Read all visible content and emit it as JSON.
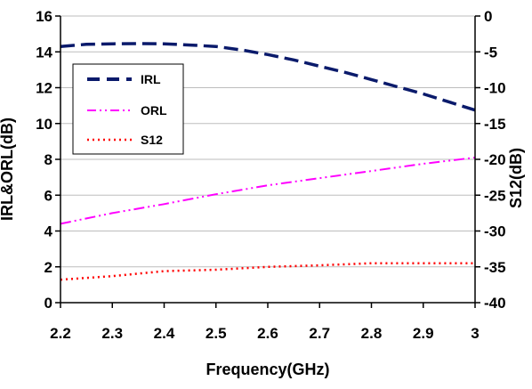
{
  "chart_data": {
    "type": "line",
    "xlabel": "Frequency(GHz)",
    "ylabel_left": "IRL&ORL(dB)",
    "ylabel_right": "S12(dB)",
    "x_ticks": [
      "2.2",
      "2.3",
      "2.4",
      "2.5",
      "2.6",
      "2.7",
      "2.8",
      "2.9",
      "3"
    ],
    "y_left_ticks": [
      "0",
      "2",
      "4",
      "6",
      "8",
      "10",
      "12",
      "14",
      "16"
    ],
    "y_right_ticks": [
      "0",
      "-5",
      "-10",
      "-15",
      "-20",
      "-25",
      "-30",
      "-35",
      "-40"
    ],
    "xlim": [
      2.2,
      3.0
    ],
    "ylim_left": [
      0,
      16
    ],
    "ylim_right": [
      -40,
      0
    ],
    "grid": "horizontal",
    "legend_position": "top-left",
    "series": [
      {
        "name": "IRL",
        "axis": "left",
        "style": "dashed",
        "color": "#0a1a6b",
        "x": [
          2.2,
          2.25,
          2.3,
          2.35,
          2.4,
          2.45,
          2.5,
          2.55,
          2.6,
          2.65,
          2.7,
          2.75,
          2.8,
          2.85,
          2.9,
          2.95,
          3.0
        ],
        "y": [
          14.3,
          14.42,
          14.45,
          14.46,
          14.45,
          14.38,
          14.3,
          14.1,
          13.85,
          13.55,
          13.2,
          12.85,
          12.45,
          12.05,
          11.65,
          11.2,
          10.75
        ]
      },
      {
        "name": "ORL",
        "axis": "left",
        "style": "dashdot",
        "color": "#ff00ff",
        "x": [
          2.2,
          2.3,
          2.4,
          2.5,
          2.6,
          2.7,
          2.8,
          2.9,
          3.0
        ],
        "y": [
          4.4,
          5.0,
          5.5,
          6.05,
          6.55,
          6.95,
          7.35,
          7.75,
          8.1
        ]
      },
      {
        "name": "S12",
        "axis": "right",
        "style": "dotted",
        "color": "#ff0000",
        "x": [
          2.2,
          2.3,
          2.4,
          2.5,
          2.6,
          2.7,
          2.8,
          2.9,
          3.0
        ],
        "y": [
          -36.8,
          -36.3,
          -35.6,
          -35.4,
          -35.0,
          -34.8,
          -34.5,
          -34.5,
          -34.5
        ]
      }
    ]
  }
}
